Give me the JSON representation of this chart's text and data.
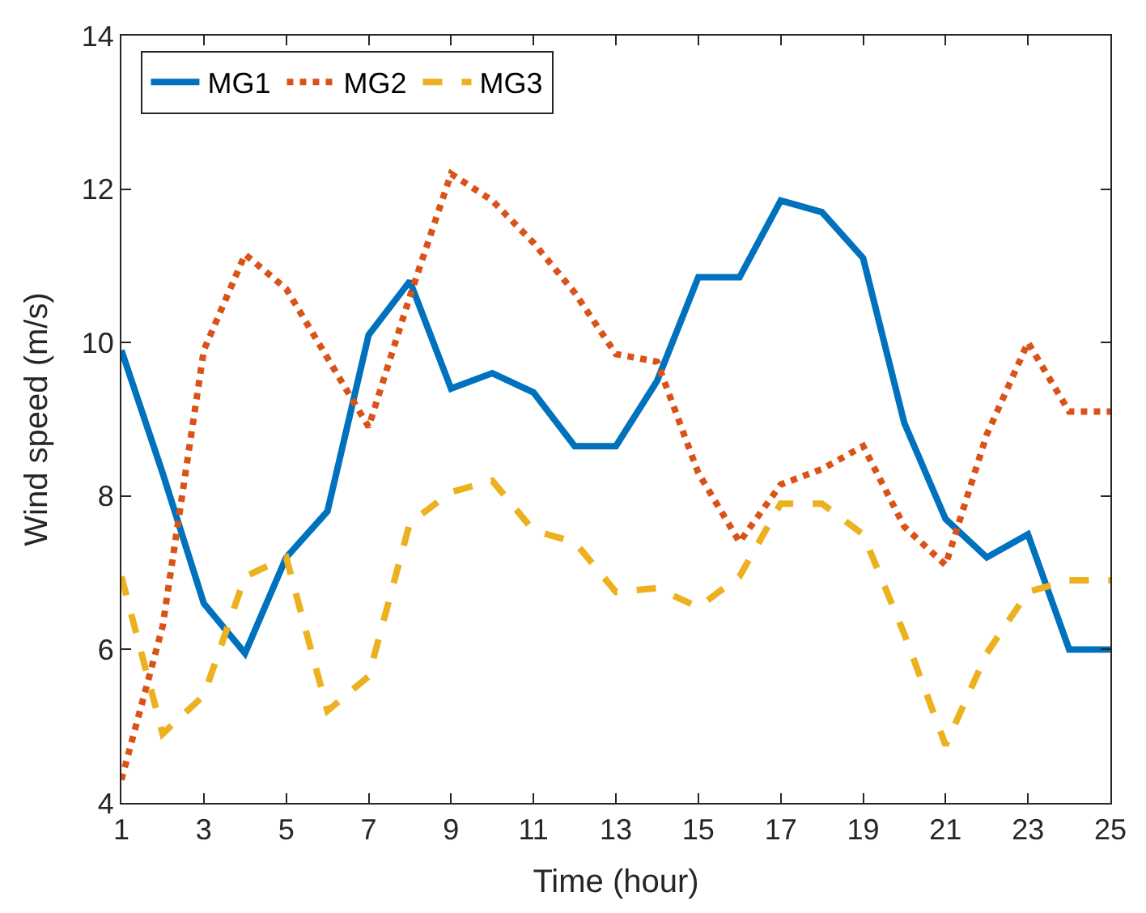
{
  "chart_data": {
    "type": "line",
    "xlabel": "Time (hour)",
    "ylabel": "Wind speed (m/s)",
    "x": [
      1,
      2,
      3,
      4,
      5,
      6,
      7,
      8,
      9,
      10,
      11,
      12,
      13,
      14,
      15,
      16,
      17,
      18,
      19,
      20,
      21,
      22,
      23,
      24,
      25
    ],
    "xlim": [
      1,
      25
    ],
    "xticks": [
      1,
      3,
      5,
      7,
      9,
      11,
      13,
      15,
      17,
      19,
      21,
      23,
      25
    ],
    "ylim": [
      4,
      14
    ],
    "yticks": [
      4,
      6,
      8,
      10,
      12,
      14
    ],
    "legend": "top left",
    "marker": "none",
    "series": [
      {
        "name": "MG1",
        "color": "#0072bd",
        "line_style": "solid",
        "values": [
          9.9,
          8.3,
          6.6,
          5.95,
          7.2,
          7.8,
          10.1,
          10.8,
          9.4,
          9.6,
          9.35,
          8.65,
          8.65,
          9.5,
          10.85,
          10.85,
          11.85,
          11.7,
          11.1,
          8.95,
          7.7,
          7.2,
          7.5,
          6.0,
          6.0
        ]
      },
      {
        "name": "MG2",
        "color": "#d95319",
        "line_style": "dotted",
        "values": [
          4.3,
          6.3,
          9.9,
          11.15,
          10.7,
          9.8,
          8.9,
          10.6,
          12.2,
          11.85,
          11.3,
          10.65,
          9.85,
          9.75,
          8.3,
          7.4,
          8.15,
          8.35,
          8.65,
          7.6,
          7.1,
          8.8,
          10.0,
          9.1,
          9.1
        ]
      },
      {
        "name": "MG3",
        "color": "#edb120",
        "line_style": "dashed",
        "values": [
          6.95,
          4.9,
          5.4,
          6.95,
          7.2,
          5.2,
          5.65,
          7.65,
          8.05,
          8.2,
          7.55,
          7.4,
          6.75,
          6.8,
          6.55,
          6.95,
          7.9,
          7.9,
          7.5,
          6.2,
          4.75,
          5.95,
          6.75,
          6.9,
          6.9
        ]
      }
    ]
  }
}
